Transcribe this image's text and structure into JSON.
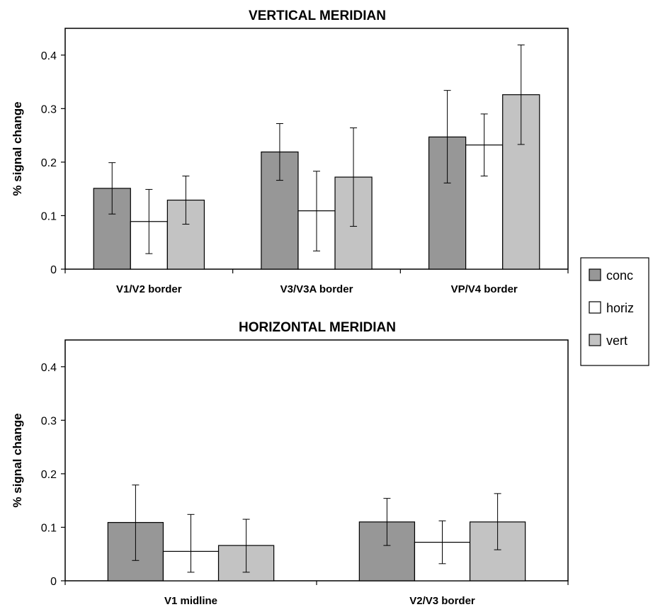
{
  "chart_data": [
    {
      "type": "bar",
      "title": "VERTICAL MERIDIAN",
      "xlabel": "",
      "ylabel": "% signal change",
      "ylim": [
        0,
        0.45
      ],
      "yticks": [
        "0",
        "0.1",
        "0.2",
        "0.3",
        "0.4"
      ],
      "categories": [
        "V1/V2 border",
        "V3/V3A border",
        "VP/V4 border"
      ],
      "series": [
        {
          "name": "conc",
          "values": [
            0.151,
            0.219,
            0.247
          ],
          "err_low": [
            0.103,
            0.166,
            0.161
          ],
          "err_high": [
            0.199,
            0.272,
            0.334
          ]
        },
        {
          "name": "horiz",
          "values": [
            0.089,
            0.109,
            0.232
          ],
          "err_low": [
            0.029,
            0.034,
            0.174
          ],
          "err_high": [
            0.149,
            0.183,
            0.29
          ]
        },
        {
          "name": "vert",
          "values": [
            0.129,
            0.172,
            0.326
          ],
          "err_low": [
            0.084,
            0.08,
            0.233
          ],
          "err_high": [
            0.174,
            0.264,
            0.419
          ]
        }
      ]
    },
    {
      "type": "bar",
      "title": "HORIZONTAL MERIDIAN",
      "xlabel": "",
      "ylabel": "% signal change",
      "ylim": [
        0,
        0.45
      ],
      "yticks": [
        "0",
        "0.1",
        "0.2",
        "0.3",
        "0.4"
      ],
      "categories": [
        "V1 midline",
        "V2/V3 border"
      ],
      "series": [
        {
          "name": "conc",
          "values": [
            0.109,
            0.11
          ],
          "err_low": [
            0.038,
            0.066
          ],
          "err_high": [
            0.179,
            0.154
          ]
        },
        {
          "name": "horiz",
          "values": [
            0.055,
            0.072
          ],
          "err_low": [
            0.016,
            0.032
          ],
          "err_high": [
            0.124,
            0.112
          ]
        },
        {
          "name": "vert",
          "values": [
            0.066,
            0.11
          ],
          "err_low": [
            0.016,
            0.058
          ],
          "err_high": [
            0.115,
            0.163
          ]
        }
      ]
    }
  ],
  "legend": {
    "placement": "right",
    "entries": [
      {
        "label": "conc",
        "color": "#979797"
      },
      {
        "label": "horiz",
        "color": "#ffffff"
      },
      {
        "label": "vert",
        "color": "#c3c3c3"
      }
    ]
  },
  "colors": {
    "plot_background": "#ffffff",
    "bar_edge": "#000000",
    "axis": "#000000"
  }
}
